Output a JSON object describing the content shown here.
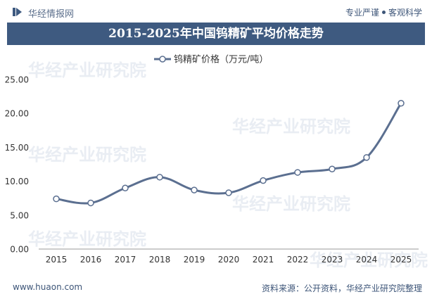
{
  "header": {
    "brand": "华经情报网",
    "slogan_left": "专业严谨",
    "slogan_right": "客观科学"
  },
  "watermark": "华经产业研究院",
  "footer": {
    "website": "www.huaon.com",
    "source": "资料来源：公开资料，华经产业研究院整理"
  },
  "colors": {
    "title_bar": "#3e5a80",
    "line": "#5b6f90",
    "text": "#3d5578"
  },
  "chart_data": {
    "type": "line",
    "title": "2015-2025年中国钨精矿平均价格走势",
    "categories": [
      "2015",
      "2016",
      "2017",
      "2018",
      "2019",
      "2020",
      "2021",
      "2022",
      "2023",
      "2024",
      "2025"
    ],
    "series": [
      {
        "name": "钨精矿价格（万元/吨）",
        "values": [
          7.4,
          6.8,
          9.0,
          10.6,
          8.7,
          8.3,
          10.1,
          11.3,
          11.8,
          13.5,
          21.5
        ]
      }
    ],
    "yticks": [
      "0.00",
      "5.00",
      "10.00",
      "15.00",
      "20.00",
      "25.00"
    ],
    "ylim": [
      0,
      25
    ],
    "grid": false,
    "legend": "top-center"
  }
}
